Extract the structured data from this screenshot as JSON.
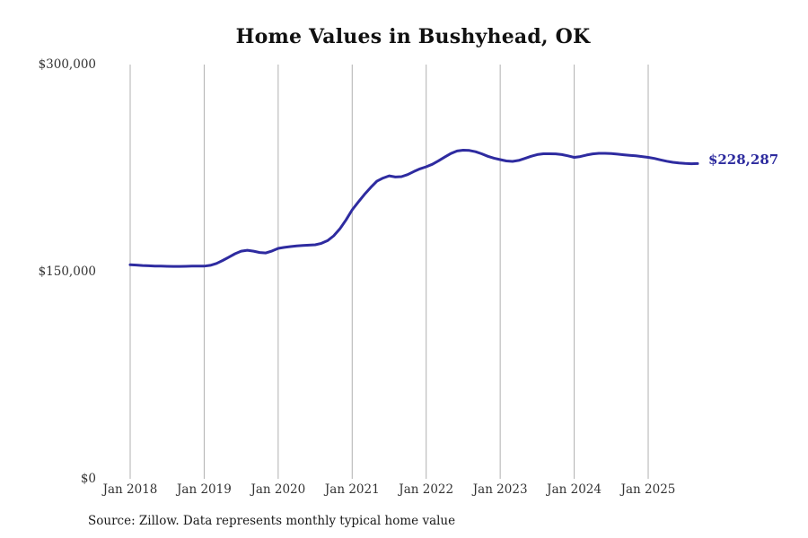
{
  "accent_color": "#2e2ba0",
  "chart_data": {
    "type": "line",
    "title": "Home Values in Bushyhead, OK",
    "series_name": "Monthly typical home value",
    "x_unit": "month",
    "x_range": [
      "Jan 2018",
      "Sep 2025"
    ],
    "x_tick_labels": [
      "Jan 2018",
      "Jan 2019",
      "Jan 2020",
      "Jan 2021",
      "Jan 2022",
      "Jan 2023",
      "Jan 2024",
      "Jan 2025"
    ],
    "x_tick_month_indices": [
      0,
      12,
      24,
      36,
      48,
      60,
      72,
      84
    ],
    "y_ticks": [
      0,
      150000,
      300000
    ],
    "y_tick_labels": [
      "$0",
      "$150,000",
      "$300,000"
    ],
    "ylim": [
      0,
      300000
    ],
    "grid": "vertical-only",
    "legend": "none",
    "line_color": "#2e2ba0",
    "gridline_color": "#b0b0b0",
    "end_label": "$228,287",
    "end_label_color": "#2d2b9e",
    "values": [
      155000,
      154800,
      154500,
      154300,
      154100,
      154000,
      153900,
      153800,
      153800,
      153900,
      154000,
      154000,
      154000,
      154600,
      156000,
      158100,
      160500,
      163000,
      164900,
      165500,
      164900,
      163900,
      163600,
      165000,
      166900,
      167600,
      168200,
      168700,
      169000,
      169200,
      169500,
      170500,
      172500,
      176000,
      181000,
      187500,
      194800,
      200500,
      206000,
      211000,
      215500,
      217800,
      219400,
      218600,
      218800,
      220300,
      222500,
      224500,
      226000,
      227800,
      230300,
      233000,
      235600,
      237400,
      238000,
      237800,
      236900,
      235400,
      233600,
      232200,
      231200,
      230200,
      229900,
      230600,
      232000,
      233600,
      234800,
      235400,
      235400,
      235300,
      234800,
      233900,
      232800,
      233400,
      234500,
      235300,
      235700,
      235700,
      235500,
      235100,
      234700,
      234300,
      233900,
      233400,
      232800,
      232000,
      231000,
      230000,
      229200,
      228700,
      228400,
      228200,
      228287
    ]
  },
  "source_note": "Source: Zillow. Data represents monthly typical home value"
}
